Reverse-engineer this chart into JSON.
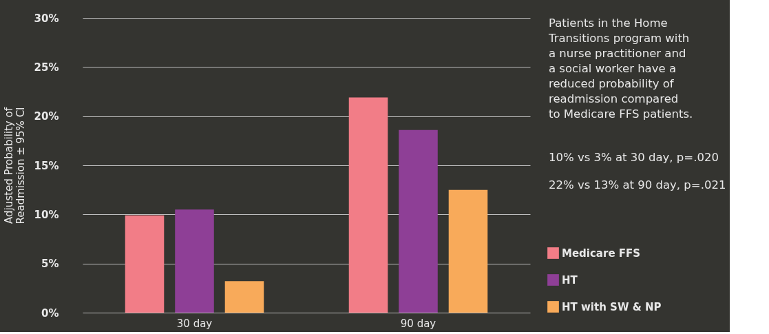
{
  "chart_data": {
    "type": "bar",
    "ylabel": "Adjusted Probability of\nReadmission ± 95% CI",
    "categories": [
      "30 day",
      "90 day"
    ],
    "series": [
      {
        "name": "Medicare FFS",
        "color": "#f27d87",
        "values": [
          9.9,
          21.9
        ]
      },
      {
        "name": "HT",
        "color": "#8e3f96",
        "values": [
          10.5,
          18.6
        ]
      },
      {
        "name": "HT with SW & NP",
        "color": "#f8aa5a",
        "values": [
          3.2,
          12.5
        ]
      }
    ],
    "ylim": [
      0,
      30
    ],
    "yticks": [
      {
        "value": 0,
        "label": "0%"
      },
      {
        "value": 5,
        "label": "5%"
      },
      {
        "value": 10,
        "label": "10%"
      },
      {
        "value": 15,
        "label": "15%"
      },
      {
        "value": 20,
        "label": "20%"
      },
      {
        "value": 25,
        "label": "25%"
      },
      {
        "value": 30,
        "label": "30%"
      }
    ],
    "grid": "y",
    "legend": "bottom right",
    "annotations": [
      "Patients in the Home\nTransitions program with\na nurse practitioner and\na social worker have a\nreduced probability of\nreadmission compared\nto Medicare FFS patients.",
      "10% vs 3% at 30 day, p=.020",
      "22% vs 13% at 90 day, p=.021"
    ]
  }
}
